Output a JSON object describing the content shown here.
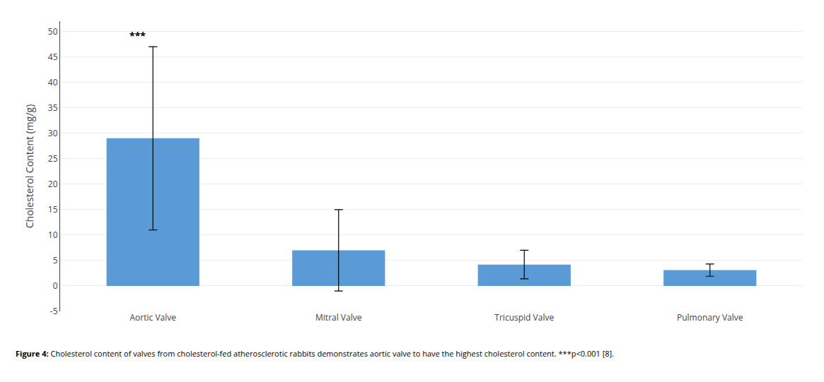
{
  "chart_data": {
    "type": "bar",
    "categories": [
      "Aortic Valve",
      "Mitral Valve",
      "Tricuspid Valve",
      "Pulmonary Valve"
    ],
    "values": [
      29.0,
      7.0,
      4.2,
      3.1
    ],
    "errors": [
      18.0,
      8.0,
      2.8,
      1.2
    ],
    "color": "#5B9BD5",
    "ylabel": "Cholesterol Content (mg/g)",
    "ylim": [
      -5,
      52
    ],
    "yticks": [
      -5,
      0,
      5,
      10,
      15,
      20,
      25,
      30,
      35,
      40,
      45,
      50
    ],
    "grid": true,
    "annotation": {
      "text": "***",
      "category": "Aortic Valve"
    },
    "caption": {
      "bold": "Figure 4:",
      "text": " Cholesterol content of valves from cholesterol-fed atherosclerotic rabbits demonstrates aortic valve to have the highest cholesterol content. ***p<0.001 [8]."
    }
  }
}
